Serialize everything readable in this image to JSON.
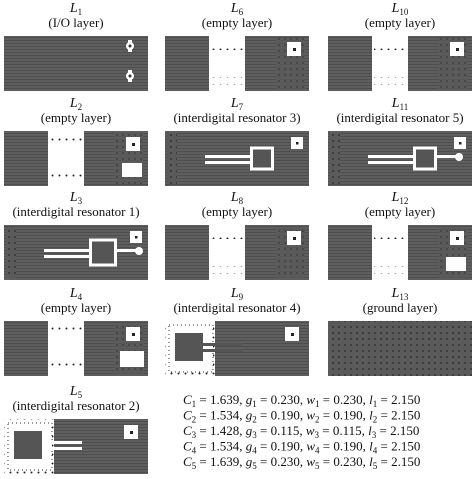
{
  "panels": [
    {
      "symbol": "L",
      "subscript": "1",
      "caption": "(I/O layer)"
    },
    {
      "symbol": "L",
      "subscript": "6",
      "caption": "(empty layer)"
    },
    {
      "symbol": "L",
      "subscript": "10",
      "caption": "(empty layer)"
    },
    {
      "symbol": "L",
      "subscript": "2",
      "caption": "(empty layer)"
    },
    {
      "symbol": "L",
      "subscript": "7",
      "caption": "(interdigital resonator 3)"
    },
    {
      "symbol": "L",
      "subscript": "11",
      "caption": "(interdigital resonator 5)"
    },
    {
      "symbol": "L",
      "subscript": "3",
      "caption": "(interdigital resonator 1)"
    },
    {
      "symbol": "L",
      "subscript": "8",
      "caption": "(empty layer)"
    },
    {
      "symbol": "L",
      "subscript": "12",
      "caption": "(empty layer)"
    },
    {
      "symbol": "L",
      "subscript": "4",
      "caption": "(empty layer)"
    },
    {
      "symbol": "L",
      "subscript": "9",
      "caption": "(interdigital resonator 4)"
    },
    {
      "symbol": "L",
      "subscript": "13",
      "caption": "(ground layer)"
    },
    {
      "symbol": "L",
      "subscript": "5",
      "caption": "(interdigital resonator 2)"
    }
  ],
  "equations": [
    [
      {
        "symbol": "C",
        "subscript": "1",
        "text": " = 1.639, "
      },
      {
        "symbol": "g",
        "subscript": "1",
        "text": " = 0.230, "
      },
      {
        "symbol": "w",
        "subscript": "1",
        "text": " = 0.230, "
      },
      {
        "symbol": "l",
        "subscript": "1",
        "text": " = 2.150"
      }
    ],
    [
      {
        "symbol": "C",
        "subscript": "2",
        "text": " = 1.534, "
      },
      {
        "symbol": "g",
        "subscript": "2",
        "text": " = 0.190, "
      },
      {
        "symbol": "w",
        "subscript": "2",
        "text": " = 0.190, "
      },
      {
        "symbol": "l",
        "subscript": "2",
        "text": " = 2.150"
      }
    ],
    [
      {
        "symbol": "C",
        "subscript": "3",
        "text": " = 1.428, "
      },
      {
        "symbol": "g",
        "subscript": "3",
        "text": " = 0.115, "
      },
      {
        "symbol": "w",
        "subscript": "3",
        "text": " = 0.115, "
      },
      {
        "symbol": "l",
        "subscript": "3",
        "text": " = 2.150"
      }
    ],
    [
      {
        "symbol": "C",
        "subscript": "4",
        "text": " = 1.534, "
      },
      {
        "symbol": "g",
        "subscript": "4",
        "text": " = 0.190, "
      },
      {
        "symbol": "w",
        "subscript": "4",
        "text": " = 0.190, "
      },
      {
        "symbol": "l",
        "subscript": "4",
        "text": " = 2.150"
      }
    ],
    [
      {
        "symbol": "C",
        "subscript": "5",
        "text": " = 1.639, "
      },
      {
        "symbol": "g",
        "subscript": "5",
        "text": " = 0.230, "
      },
      {
        "symbol": "w",
        "subscript": "5",
        "text": " = 0.230, "
      },
      {
        "symbol": "l",
        "subscript": "5",
        "text": " = 2.150"
      }
    ]
  ]
}
